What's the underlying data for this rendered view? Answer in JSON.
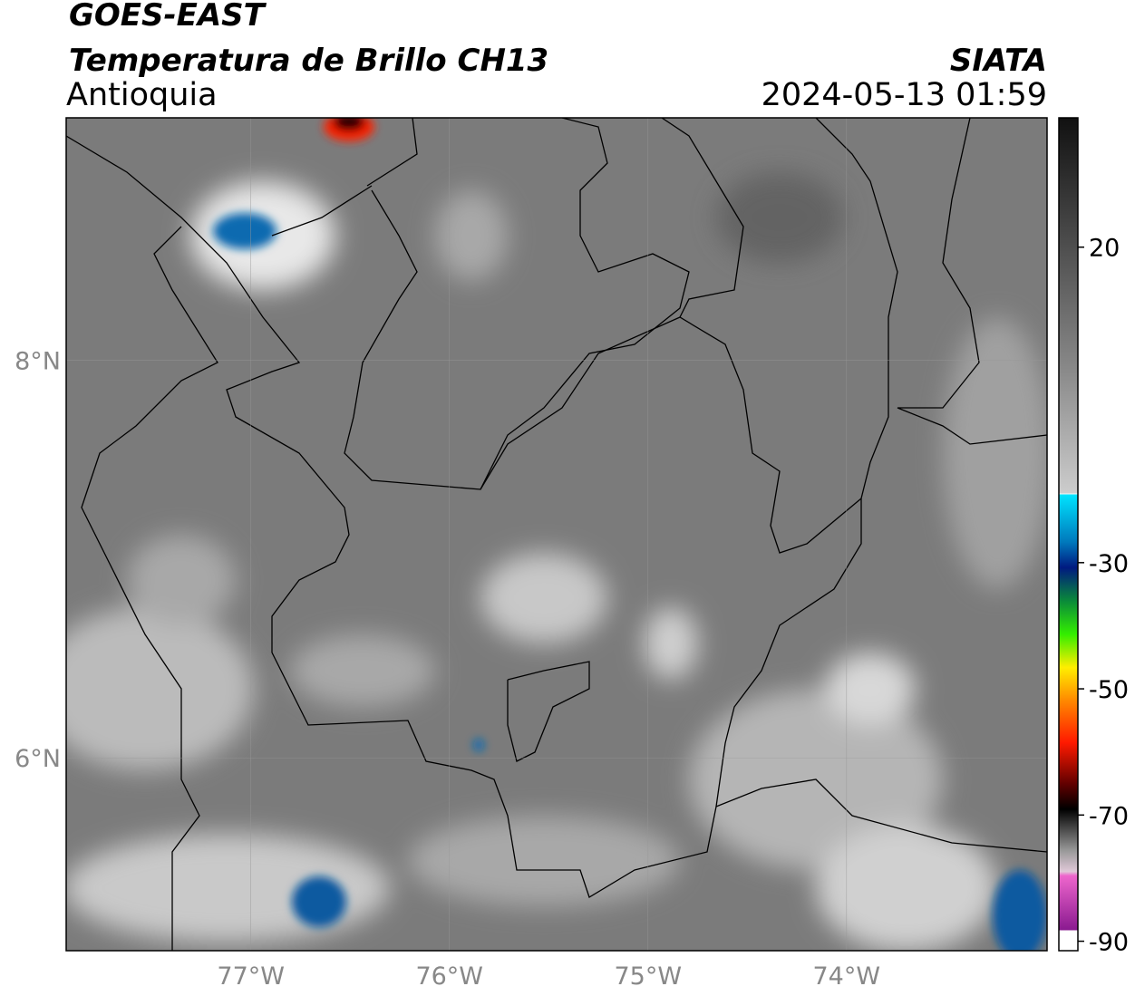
{
  "header": {
    "satellite": "GOES-EAST",
    "product": "Temperatura de Brillo CH13",
    "region": "Antioquia",
    "agency": "SIATA",
    "datetime": "2024-05-13 01:59"
  },
  "map": {
    "xlim": [
      -77.93,
      -72.99
    ],
    "ylim": [
      5.03,
      9.22
    ],
    "xticks": [
      {
        "value": -77,
        "label": "77°W"
      },
      {
        "value": -76,
        "label": "76°W"
      },
      {
        "value": -75,
        "label": "75°W"
      },
      {
        "value": -74,
        "label": "74°W"
      }
    ],
    "yticks": [
      {
        "value": 8,
        "label": "8°N"
      },
      {
        "value": 6,
        "label": "6°N"
      }
    ],
    "grid": true
  },
  "colorbar": {
    "lim": [
      -91.5,
      40.5
    ],
    "ticks": [
      20,
      -30,
      -50,
      -70,
      -90
    ]
  }
}
